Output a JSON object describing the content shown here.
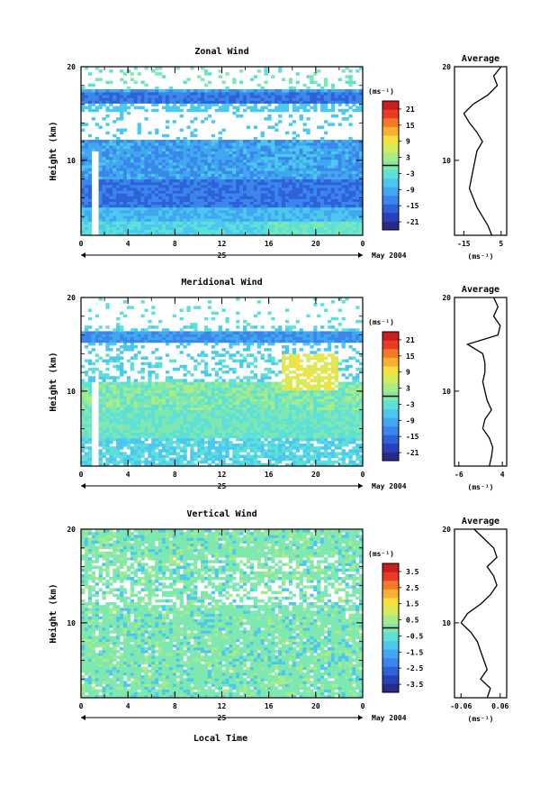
{
  "figure": {
    "x_axis": {
      "ticks": [
        "0",
        "4",
        "8",
        "12",
        "16",
        "20",
        "0"
      ],
      "range": [
        0,
        24
      ],
      "day_label": "25",
      "date_label": "May 2004",
      "xlabel": "Local Time"
    },
    "y_axis": {
      "ylabel": "Height (km)",
      "ticks": [
        "20",
        "10"
      ],
      "range": [
        2,
        20
      ]
    },
    "colorbar_unit": "(ms⁻¹)",
    "average_title": "Average",
    "average_unit": "(ms⁻¹)"
  },
  "colorbar_colors": [
    "#2a2a8a",
    "#2a40b8",
    "#2e62d8",
    "#3a86ea",
    "#41a8f0",
    "#4cc8ee",
    "#5ee0d8",
    "#7ee8b0",
    "#a8ec88",
    "#d4ec5c",
    "#f6e040",
    "#f8b030",
    "#f47a28",
    "#e83c24",
    "#c81e1e"
  ],
  "chart_data": [
    {
      "type": "heatmap",
      "title": "Zonal Wind",
      "colorbar_ticks": [
        21,
        15,
        9,
        3,
        -3,
        -9,
        -15,
        -21
      ],
      "colorbar_range": [
        -24,
        24
      ],
      "average_profile": {
        "x_ticks": [
          "-15",
          "5"
        ],
        "x_range": [
          -20,
          8
        ],
        "height_km": [
          2,
          3,
          4,
          5,
          6,
          7,
          8,
          9,
          10,
          11,
          12,
          13,
          14,
          15,
          16,
          17,
          18,
          19,
          20
        ],
        "value": [
          0,
          -2,
          -5,
          -8,
          -10,
          -12,
          -11,
          -10,
          -9,
          -8,
          -5,
          -8,
          -12,
          -15,
          -10,
          -2,
          3,
          1,
          5
        ]
      }
    },
    {
      "type": "heatmap",
      "title": "Meridional Wind",
      "colorbar_ticks": [
        21,
        15,
        9,
        3,
        -3,
        -9,
        -15,
        -21
      ],
      "colorbar_range": [
        -24,
        24
      ],
      "average_profile": {
        "x_ticks": [
          "-6",
          "4"
        ],
        "x_range": [
          -7,
          5
        ],
        "height_km": [
          2,
          3,
          4,
          5,
          6,
          7,
          8,
          9,
          10,
          11,
          12,
          13,
          14,
          15,
          16,
          17,
          18,
          19,
          20
        ],
        "value": [
          1,
          1.5,
          1.8,
          1,
          -0.5,
          0,
          1.5,
          0.5,
          0,
          -0.5,
          0,
          0,
          -0.5,
          -4,
          3,
          3.5,
          2,
          3,
          2
        ]
      }
    },
    {
      "type": "heatmap",
      "title": "Vertical Wind",
      "colorbar_ticks": [
        3.5,
        2.5,
        1.5,
        0.5,
        -0.5,
        -1.5,
        -2.5,
        -3.5
      ],
      "colorbar_range": [
        -4,
        4
      ],
      "average_profile": {
        "x_ticks": [
          "-0.06",
          "0.06"
        ],
        "x_range": [
          -0.08,
          0.08
        ],
        "height_km": [
          2,
          3,
          4,
          5,
          6,
          7,
          8,
          9,
          10,
          11,
          12,
          13,
          14,
          15,
          16,
          17,
          18,
          19,
          20
        ],
        "value": [
          0.02,
          0.03,
          0.0,
          0.02,
          0.01,
          0.0,
          -0.01,
          -0.03,
          -0.06,
          -0.04,
          0.0,
          0.03,
          0.05,
          0.04,
          0.02,
          0.05,
          0.04,
          0.01,
          -0.02
        ]
      }
    }
  ]
}
